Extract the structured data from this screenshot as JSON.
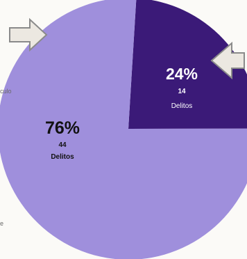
{
  "chart_data": {
    "type": "pie",
    "title": "",
    "slices": [
      {
        "label": "Delitos",
        "count": "14",
        "percent_label": "24%",
        "value": 24,
        "color": "#3b1a78"
      },
      {
        "label": "Delitos",
        "count": "44",
        "percent_label": "76%",
        "value": 76,
        "color": "#9f8fdc"
      }
    ]
  },
  "edge_text": {
    "left_upper": "culo",
    "left_lower": "e"
  },
  "colors": {
    "background": "#fbfaf7",
    "arrow_fill": "#ece8e1",
    "arrow_stroke": "#8a8a8a",
    "label_dark_slice": "#ffffff",
    "label_light_slice": "#111111"
  }
}
